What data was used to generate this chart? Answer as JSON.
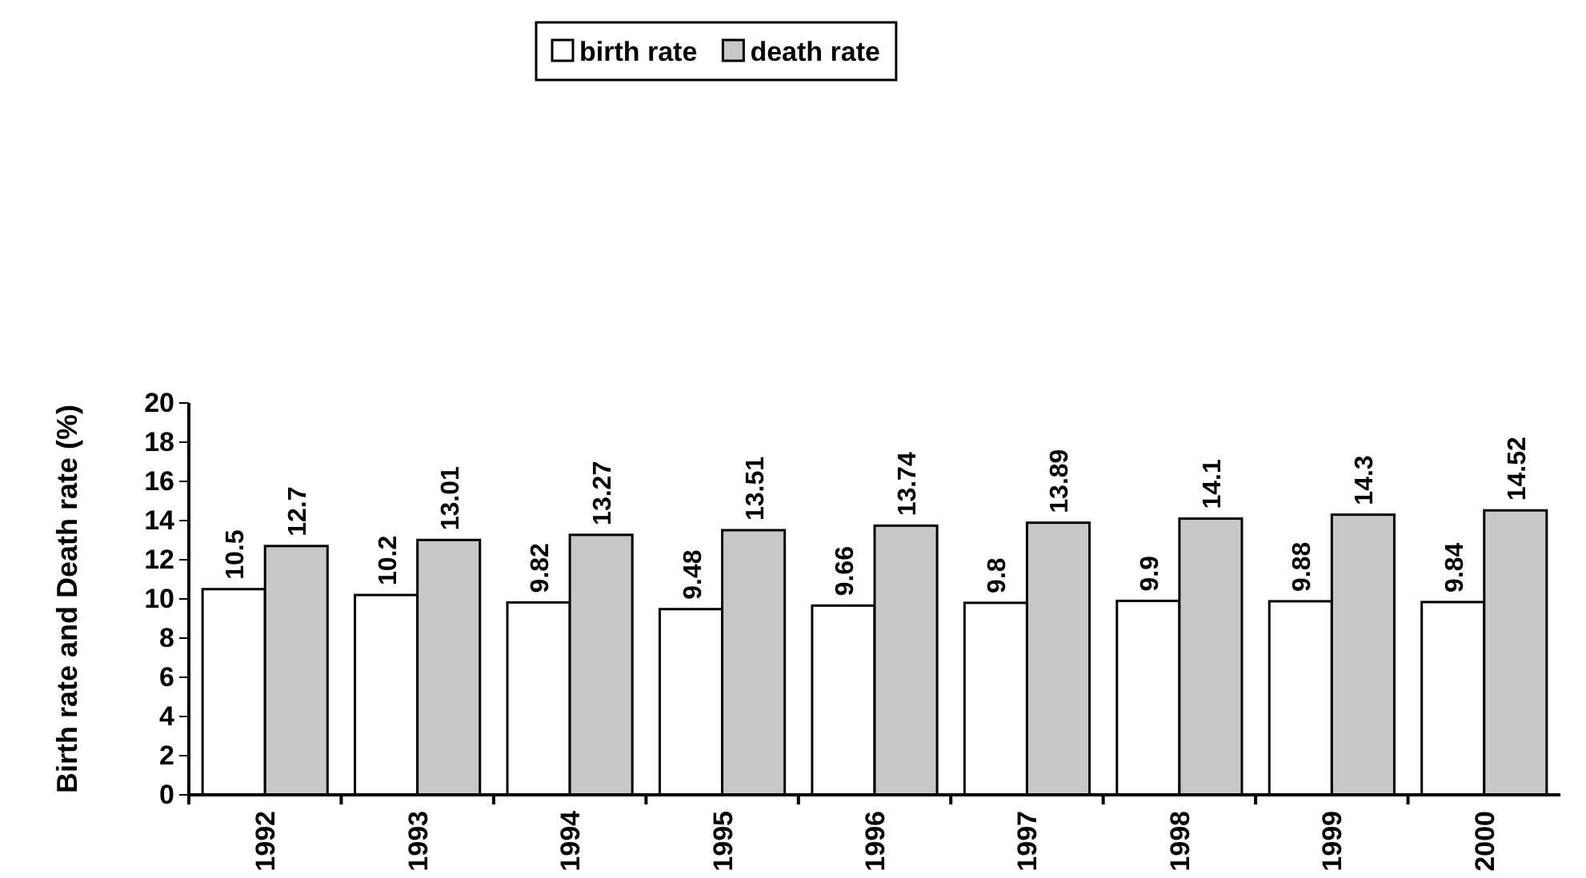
{
  "chart_data": {
    "type": "bar",
    "ylabel": "Birth rate and Death rate (%)",
    "categories": [
      "1992",
      "1993",
      "1994",
      "1995",
      "1996",
      "1997",
      "1998",
      "1999",
      "2000"
    ],
    "series": [
      {
        "name": "birth rate",
        "color": "#ffffff",
        "values": [
          10.5,
          10.2,
          9.82,
          9.48,
          9.66,
          9.8,
          9.9,
          9.88,
          9.84
        ]
      },
      {
        "name": "death rate",
        "color": "#c8c8c8",
        "values": [
          12.7,
          13.01,
          13.27,
          13.51,
          13.74,
          13.89,
          14.1,
          14.3,
          14.52
        ]
      }
    ],
    "ylim": [
      0,
      20
    ],
    "yticks": [
      0,
      2,
      4,
      6,
      8,
      10,
      12,
      14,
      16,
      18,
      20
    ],
    "data_labels": true,
    "legend": "top",
    "grid": false
  }
}
